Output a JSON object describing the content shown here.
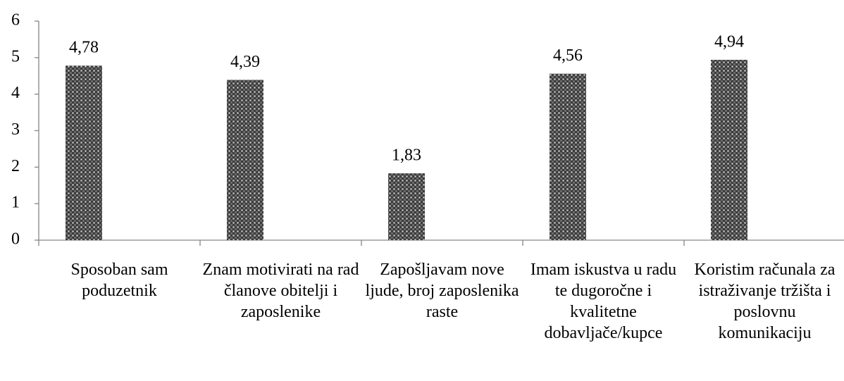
{
  "chart_data": {
    "type": "bar",
    "categories": [
      "Sposoban sam poduzetnik",
      "Znam motivirati na rad članove obitelji i zaposlenike",
      "Zapošljavam nove ljude, broj zaposlenika raste",
      "Imam iskustva u radu te dugoročne i kvalitetne dobavljače/kupce",
      "Koristim računala za istraživanje tržišta i poslovnu komunikaciju"
    ],
    "values": [
      4.78,
      4.39,
      1.83,
      4.56,
      4.94
    ],
    "value_labels": [
      "4,78",
      "4,39",
      "1,83",
      "4,56",
      "4,94"
    ],
    "ylim": [
      0,
      6
    ],
    "yticks": [
      0,
      1,
      2,
      3,
      4,
      5,
      6
    ],
    "grid": false
  }
}
